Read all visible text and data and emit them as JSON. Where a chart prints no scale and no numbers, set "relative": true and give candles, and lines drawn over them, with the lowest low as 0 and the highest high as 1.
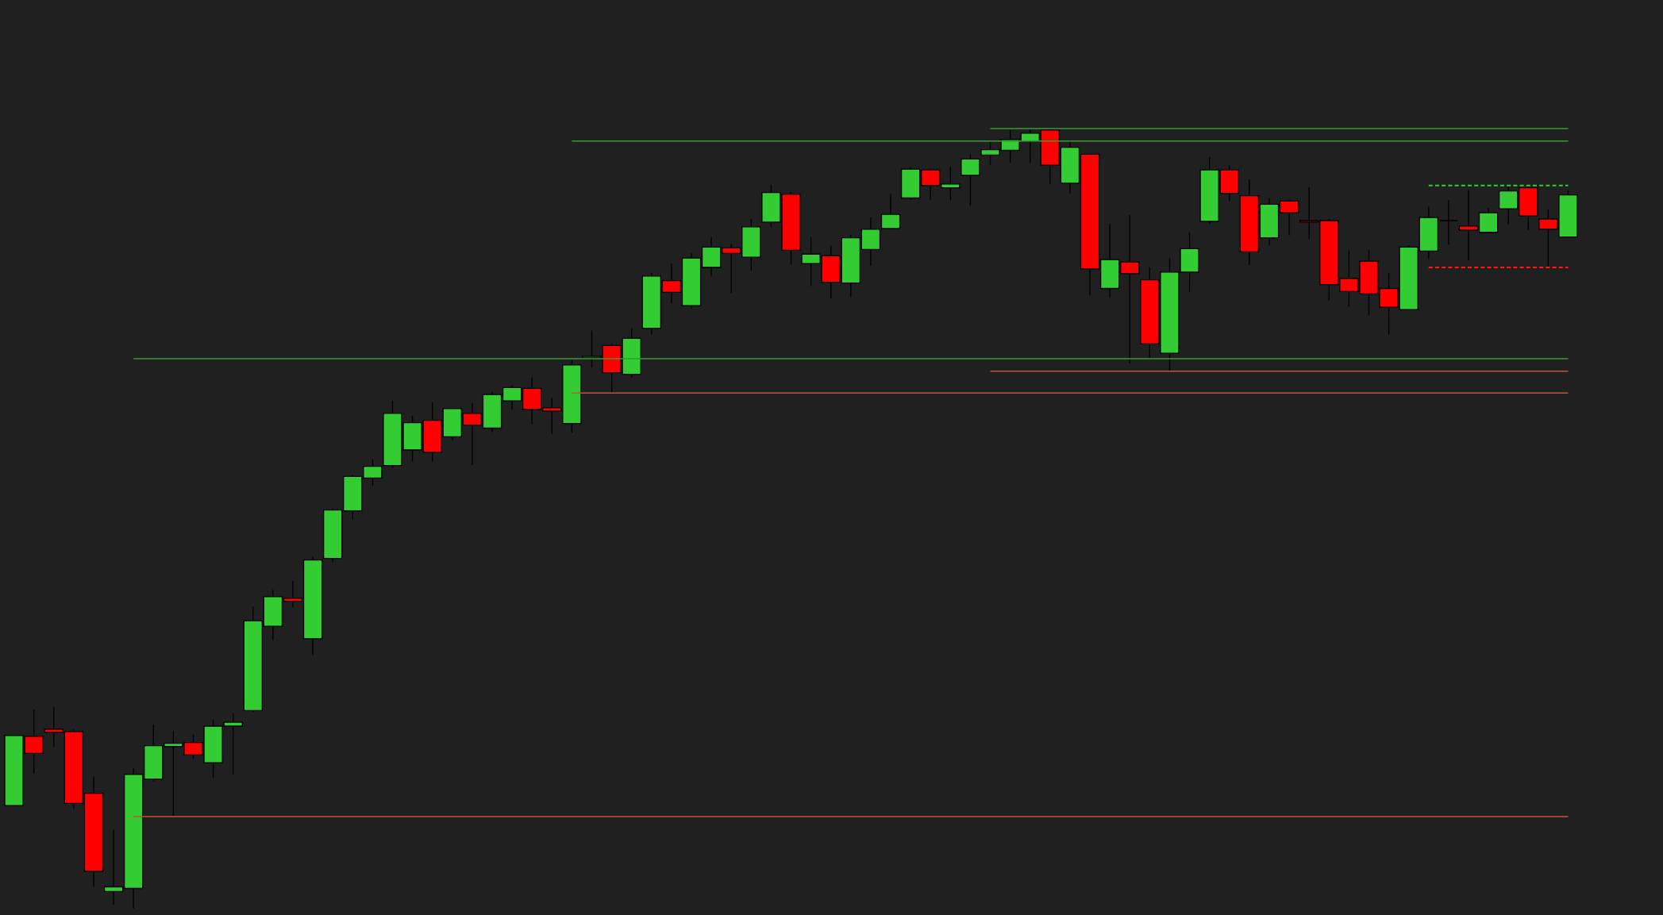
{
  "chart_data": {
    "type": "candlestick",
    "relative": true,
    "categories": [
      null,
      null,
      null,
      null,
      null,
      null,
      null,
      null,
      null,
      null,
      null,
      null,
      null,
      null,
      null,
      null,
      null,
      null,
      null,
      null,
      null,
      null,
      null,
      null,
      null,
      null,
      null,
      null,
      null,
      null,
      null,
      null,
      null,
      null,
      null,
      null,
      null,
      null,
      null,
      null,
      null,
      null,
      null,
      null,
      null,
      null,
      null,
      null,
      null,
      null,
      null,
      null,
      null,
      null,
      null,
      null,
      null,
      null,
      null,
      null,
      null,
      null,
      null,
      null,
      null,
      null,
      null,
      null,
      null,
      null,
      null,
      null,
      null,
      null,
      null,
      null,
      null,
      null,
      null
    ],
    "ohlc": [
      [
        0.132,
        0.222,
        0.132,
        0.222
      ],
      [
        0.221,
        0.255,
        0.173,
        0.199
      ],
      [
        0.23,
        0.259,
        0.207,
        0.226
      ],
      [
        0.227,
        0.23,
        0.128,
        0.135
      ],
      [
        0.148,
        0.169,
        0.028,
        0.048
      ],
      [
        0.022,
        0.101,
        0.005,
        0.028
      ],
      [
        0.026,
        0.18,
        0,
        0.172
      ],
      [
        0.166,
        0.236,
        0.163,
        0.209
      ],
      [
        0.208,
        0.228,
        0.119,
        0.212
      ],
      [
        0.213,
        0.223,
        0.192,
        0.197
      ],
      [
        0.187,
        0.242,
        0.168,
        0.234
      ],
      [
        0.234,
        0.251,
        0.172,
        0.239
      ],
      [
        0.254,
        0.387,
        0.252,
        0.369
      ],
      [
        0.362,
        0.409,
        0.344,
        0.4
      ],
      [
        0.398,
        0.42,
        0.386,
        0.394
      ],
      [
        0.346,
        0.451,
        0.325,
        0.447
      ],
      [
        0.449,
        0.513,
        0.444,
        0.511
      ],
      [
        0.51,
        0.556,
        0.499,
        0.554
      ],
      [
        0.552,
        0.576,
        0.542,
        0.567
      ],
      [
        0.568,
        0.651,
        0.565,
        0.635
      ],
      [
        0.588,
        0.632,
        0.573,
        0.623
      ],
      [
        0.626,
        0.649,
        0.573,
        0.585
      ],
      [
        0.605,
        0.641,
        0.601,
        0.641
      ],
      [
        0.635,
        0.648,
        0.569,
        0.62
      ],
      [
        0.616,
        0.662,
        0.611,
        0.659
      ],
      [
        0.651,
        0.671,
        0.64,
        0.668
      ],
      [
        0.667,
        0.681,
        0.621,
        0.64
      ],
      [
        0.642,
        0.655,
        0.608,
        0.638
      ],
      [
        0.622,
        0.703,
        0.61,
        0.697
      ],
      [
        0.706,
        0.741,
        0.694,
        0.708
      ],
      [
        0.722,
        0.724,
        0.662,
        0.687
      ],
      [
        0.685,
        0.744,
        0.681,
        0.731
      ],
      [
        0.744,
        0.815,
        0.736,
        0.811
      ],
      [
        0.805,
        0.827,
        0.776,
        0.79
      ],
      [
        0.773,
        0.84,
        0.769,
        0.834
      ],
      [
        0.822,
        0.861,
        0.811,
        0.848
      ],
      [
        0.847,
        0.852,
        0.789,
        0.84
      ],
      [
        0.835,
        0.884,
        0.818,
        0.874
      ],
      [
        0.88,
        0.928,
        0.874,
        0.918
      ],
      [
        0.916,
        0.919,
        0.826,
        0.844
      ],
      [
        0.827,
        0.861,
        0.798,
        0.839
      ],
      [
        0.837,
        0.85,
        0.782,
        0.803
      ],
      [
        0.802,
        0.864,
        0.784,
        0.86
      ],
      [
        0.845,
        0.886,
        0.824,
        0.871
      ],
      [
        0.872,
        0.916,
        0.872,
        0.89
      ],
      [
        0.911,
        0.951,
        0.909,
        0.948
      ],
      [
        0.947,
        0.948,
        0.909,
        0.927
      ],
      [
        0.924,
        0.951,
        0.908,
        0.929
      ],
      [
        0.94,
        0.967,
        0.901,
        0.961
      ],
      [
        0.966,
        0.983,
        0.953,
        0.973
      ],
      [
        0.972,
        0.998,
        0.956,
        0.986
      ],
      [
        0.984,
        0.999,
        0.956,
        0.994
      ],
      [
        0.998,
        1,
        0.929,
        0.953
      ],
      [
        0.93,
        0.984,
        0.917,
        0.976
      ],
      [
        0.967,
        0.968,
        0.786,
        0.82
      ],
      [
        0.795,
        0.878,
        0.783,
        0.832
      ],
      [
        0.829,
        0.889,
        0.699,
        0.814
      ],
      [
        0.806,
        0.822,
        0.706,
        0.724
      ],
      [
        0.712,
        0.834,
        0.689,
        0.816
      ],
      [
        0.816,
        0.867,
        0.791,
        0.846
      ],
      [
        0.881,
        0.963,
        0.878,
        0.947
      ],
      [
        0.947,
        0.953,
        0.907,
        0.917
      ],
      [
        0.914,
        0.935,
        0.825,
        0.842
      ],
      [
        0.86,
        0.911,
        0.85,
        0.903
      ],
      [
        0.907,
        0.909,
        0.863,
        0.892
      ],
      [
        0.882,
        0.925,
        0.858,
        0.88
      ],
      [
        0.882,
        0.884,
        0.78,
        0.8
      ],
      [
        0.808,
        0.844,
        0.772,
        0.791
      ],
      [
        0.83,
        0.844,
        0.761,
        0.788
      ],
      [
        0.795,
        0.815,
        0.736,
        0.771
      ],
      [
        0.768,
        0.85,
        0.768,
        0.848
      ],
      [
        0.843,
        0.9,
        0.833,
        0.886
      ],
      [
        0.882,
        0.908,
        0.851,
        0.882
      ],
      [
        0.875,
        0.921,
        0.831,
        0.87
      ],
      [
        0.867,
        0.898,
        0.867,
        0.892
      ],
      [
        0.897,
        0.926,
        0.877,
        0.92
      ],
      [
        0.924,
        0.926,
        0.87,
        0.888
      ],
      [
        0.884,
        0.896,
        0.822,
        0.871
      ],
      [
        0.861,
        0.921,
        0.861,
        0.915
      ]
    ],
    "colors": [
      "#33cc33",
      "#ff0000",
      "#ff0000",
      "#ff0000",
      "#ff0000",
      "#33cc33",
      "#33cc33",
      "#33cc33",
      "#33cc33",
      "#ff0000",
      "#33cc33",
      "#33cc33",
      "#33cc33",
      "#33cc33",
      "#ff0000",
      "#33cc33",
      "#33cc33",
      "#33cc33",
      "#33cc33",
      "#33cc33",
      "#33cc33",
      "#ff0000",
      "#33cc33",
      "#ff0000",
      "#33cc33",
      "#33cc33",
      "#ff0000",
      "#ff0000",
      "#33cc33",
      "#33cc33",
      "#ff0000",
      "#33cc33",
      "#33cc33",
      "#ff0000",
      "#33cc33",
      "#33cc33",
      "#ff0000",
      "#33cc33",
      "#33cc33",
      "#ff0000",
      "#33cc33",
      "#ff0000",
      "#33cc33",
      "#33cc33",
      "#33cc33",
      "#33cc33",
      "#ff0000",
      "#33cc33",
      "#33cc33",
      "#33cc33",
      "#33cc33",
      "#33cc33",
      "#ff0000",
      "#33cc33",
      "#ff0000",
      "#33cc33",
      "#ff0000",
      "#ff0000",
      "#33cc33",
      "#33cc33",
      "#33cc33",
      "#ff0000",
      "#ff0000",
      "#33cc33",
      "#ff0000",
      "#ff0000",
      "#ff0000",
      "#ff0000",
      "#ff0000",
      "#ff0000",
      "#33cc33",
      "#33cc33",
      "#000000",
      "#ff0000",
      "#33cc33",
      "#33cc33",
      "#ff0000",
      "#ff0000",
      "#33cc33"
    ],
    "series": [
      {
        "type": "line",
        "color": "#3a9b35",
        "line_style": "solid",
        "values": [
          null,
          null,
          null,
          null,
          null,
          null,
          0.705,
          0.705,
          0.705,
          0.705,
          0.705,
          0.705,
          0.705,
          0.705,
          0.705,
          0.705,
          0.705,
          0.705,
          0.705,
          0.705,
          0.705,
          0.705,
          0.705,
          0.705,
          0.705,
          0.705,
          0.705,
          0.705,
          0.705,
          0.705,
          0.705,
          0.705,
          0.705,
          0.705,
          0.705,
          0.705,
          0.705,
          0.705,
          0.705,
          0.705,
          0.705,
          0.705,
          0.705,
          0.705,
          0.705,
          0.705,
          0.705,
          0.705,
          0.705,
          0.705,
          0.705,
          0.705,
          0.705,
          0.705,
          0.705,
          0.705,
          0.705,
          0.705,
          0.705,
          0.705,
          0.705,
          0.705,
          0.705,
          0.705,
          0.705,
          0.705,
          0.705,
          0.705,
          0.705,
          0.705,
          0.705,
          0.705,
          0.705,
          0.705,
          0.705,
          0.705,
          0.705,
          0.705,
          0.705
        ]
      },
      {
        "type": "line",
        "color": "#c4533c",
        "line_style": "solid",
        "values": [
          null,
          null,
          null,
          null,
          null,
          null,
          0.118,
          0.118,
          0.118,
          0.118,
          0.118,
          0.118,
          0.118,
          0.118,
          0.118,
          0.118,
          0.118,
          0.118,
          0.118,
          0.118,
          0.118,
          0.118,
          0.118,
          0.118,
          0.118,
          0.118,
          0.118,
          0.118,
          0.118,
          0.118,
          0.118,
          0.118,
          0.118,
          0.118,
          0.118,
          0.118,
          0.118,
          0.118,
          0.118,
          0.118,
          0.118,
          0.118,
          0.118,
          0.118,
          0.118,
          0.118,
          0.118,
          0.118,
          0.118,
          0.118,
          0.118,
          0.118,
          0.118,
          0.118,
          0.118,
          0.118,
          0.118,
          0.118,
          0.118,
          0.118,
          0.118,
          0.118,
          0.118,
          0.118,
          0.118,
          0.118,
          0.118,
          0.118,
          0.118,
          0.118,
          0.118,
          0.118,
          0.118,
          0.118,
          0.118,
          0.118,
          0.118,
          0.118,
          0.118
        ]
      },
      {
        "type": "line",
        "color": "#3a9b35",
        "line_style": "solid",
        "values": [
          null,
          null,
          null,
          null,
          null,
          null,
          null,
          null,
          null,
          null,
          null,
          null,
          null,
          null,
          null,
          null,
          null,
          null,
          null,
          null,
          null,
          null,
          null,
          null,
          null,
          null,
          null,
          null,
          0.984,
          0.984,
          0.984,
          0.984,
          0.984,
          0.984,
          0.984,
          0.984,
          0.984,
          0.984,
          0.984,
          0.984,
          0.984,
          0.984,
          0.984,
          0.984,
          0.984,
          0.984,
          0.984,
          0.984,
          0.984,
          0.984,
          0.984,
          0.984,
          0.984,
          0.984,
          0.984,
          0.984,
          0.984,
          0.984,
          0.984,
          0.984,
          0.984,
          0.984,
          0.984,
          0.984,
          0.984,
          0.984,
          0.984,
          0.984,
          0.984,
          0.984,
          0.984,
          0.984,
          0.984,
          0.984,
          0.984,
          0.984,
          0.984,
          0.984,
          0.984
        ]
      },
      {
        "type": "line",
        "color": "#c4533c",
        "line_style": "solid",
        "values": [
          null,
          null,
          null,
          null,
          null,
          null,
          null,
          null,
          null,
          null,
          null,
          null,
          null,
          null,
          null,
          null,
          null,
          null,
          null,
          null,
          null,
          null,
          null,
          null,
          null,
          null,
          null,
          null,
          0.661,
          0.661,
          0.661,
          0.661,
          0.661,
          0.661,
          0.661,
          0.661,
          0.661,
          0.661,
          0.661,
          0.661,
          0.661,
          0.661,
          0.661,
          0.661,
          0.661,
          0.661,
          0.661,
          0.661,
          0.661,
          0.661,
          0.661,
          0.661,
          0.661,
          0.661,
          0.661,
          0.661,
          0.661,
          0.661,
          0.661,
          0.661,
          0.661,
          0.661,
          0.661,
          0.661,
          0.661,
          0.661,
          0.661,
          0.661,
          0.661,
          0.661,
          0.661,
          0.661,
          0.661,
          0.661,
          0.661,
          0.661,
          0.661,
          0.661,
          0.661
        ]
      },
      {
        "type": "line",
        "color": "#3a9b35",
        "line_style": "solid",
        "values": [
          null,
          null,
          null,
          null,
          null,
          null,
          null,
          null,
          null,
          null,
          null,
          null,
          null,
          null,
          null,
          null,
          null,
          null,
          null,
          null,
          null,
          null,
          null,
          null,
          null,
          null,
          null,
          null,
          null,
          null,
          null,
          null,
          null,
          null,
          null,
          null,
          null,
          null,
          null,
          null,
          null,
          null,
          null,
          null,
          null,
          null,
          null,
          null,
          null,
          1,
          1,
          1,
          1,
          1,
          1,
          1,
          1,
          1,
          1,
          1,
          1,
          1,
          1,
          1,
          1,
          1,
          1,
          1,
          1,
          1,
          1,
          1,
          1,
          1,
          1,
          1,
          1,
          1,
          1
        ]
      },
      {
        "type": "line",
        "color": "#c4533c",
        "line_style": "solid",
        "values": [
          null,
          null,
          null,
          null,
          null,
          null,
          null,
          null,
          null,
          null,
          null,
          null,
          null,
          null,
          null,
          null,
          null,
          null,
          null,
          null,
          null,
          null,
          null,
          null,
          null,
          null,
          null,
          null,
          null,
          null,
          null,
          null,
          null,
          null,
          null,
          null,
          null,
          null,
          null,
          null,
          null,
          null,
          null,
          null,
          null,
          null,
          null,
          null,
          null,
          0.689,
          0.689,
          0.689,
          0.689,
          0.689,
          0.689,
          0.689,
          0.689,
          0.689,
          0.689,
          0.689,
          0.689,
          0.689,
          0.689,
          0.689,
          0.689,
          0.689,
          0.689,
          0.689,
          0.689,
          0.689,
          0.689,
          0.689,
          0.689,
          0.689,
          0.689,
          0.689,
          0.689,
          0.689,
          0.689
        ]
      },
      {
        "type": "line",
        "color": "#33cc33",
        "line_style": "dashed",
        "values": [
          null,
          null,
          null,
          null,
          null,
          null,
          null,
          null,
          null,
          null,
          null,
          null,
          null,
          null,
          null,
          null,
          null,
          null,
          null,
          null,
          null,
          null,
          null,
          null,
          null,
          null,
          null,
          null,
          null,
          null,
          null,
          null,
          null,
          null,
          null,
          null,
          null,
          null,
          null,
          null,
          null,
          null,
          null,
          null,
          null,
          null,
          null,
          null,
          null,
          null,
          null,
          null,
          null,
          null,
          null,
          null,
          null,
          null,
          null,
          null,
          null,
          null,
          null,
          null,
          null,
          null,
          null,
          null,
          null,
          null,
          null,
          0.927,
          0.927,
          0.927,
          0.927,
          0.927,
          0.927,
          0.927,
          0.927
        ]
      },
      {
        "type": "line",
        "color": "#ff1a1a",
        "line_style": "dashed",
        "values": [
          null,
          null,
          null,
          null,
          null,
          null,
          null,
          null,
          null,
          null,
          null,
          null,
          null,
          null,
          null,
          null,
          null,
          null,
          null,
          null,
          null,
          null,
          null,
          null,
          null,
          null,
          null,
          null,
          null,
          null,
          null,
          null,
          null,
          null,
          null,
          null,
          null,
          null,
          null,
          null,
          null,
          null,
          null,
          null,
          null,
          null,
          null,
          null,
          null,
          null,
          null,
          null,
          null,
          null,
          null,
          null,
          null,
          null,
          null,
          null,
          null,
          null,
          null,
          null,
          null,
          null,
          null,
          null,
          null,
          null,
          null,
          0.822,
          0.822,
          0.822,
          0.822,
          0.822,
          0.822,
          0.822,
          0.822
        ]
      }
    ]
  }
}
